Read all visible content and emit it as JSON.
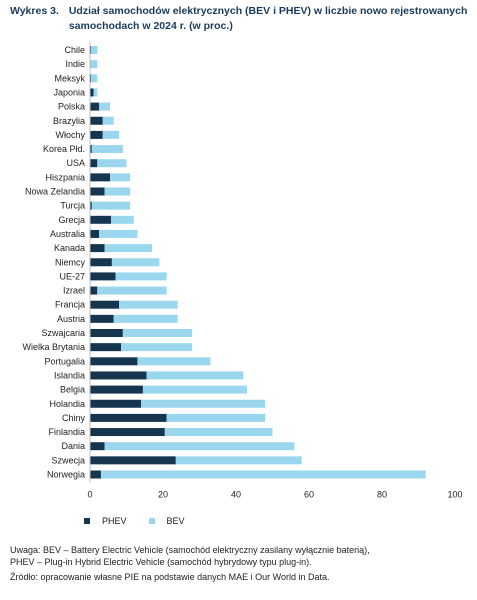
{
  "header": {
    "label": "Wykres 3.",
    "title": "Udział samochodów elektrycznych (BEV i PHEV) w liczbie nowo rejestrowanych samochodach w 2024 r. (w proc.)"
  },
  "colors": {
    "phev": "#16354f",
    "bev": "#9ad7ef",
    "axis": "#bfbfbf"
  },
  "chart_data": {
    "type": "bar",
    "orientation": "horizontal",
    "stacked": true,
    "categories": [
      "Chile",
      "Indie",
      "Meksyk",
      "Japonia",
      "Polska",
      "Brazylia",
      "Włochy",
      "Korea Płd.",
      "USA",
      "Hiszpania",
      "Nowa Zelandia",
      "Turcja",
      "Grecja",
      "Australia",
      "Kanada",
      "Niemcy",
      "UE-27",
      "Izrael",
      "Francja",
      "Austria",
      "Szwajcaria",
      "Wielka Brytania",
      "Portugalia",
      "Islandia",
      "Belgia",
      "Holandia",
      "Chiny",
      "Finlandia",
      "Dania",
      "Szwecja",
      "Norwegia"
    ],
    "series": [
      {
        "name": "PHEV",
        "values": [
          0.3,
          0.2,
          0.3,
          1.0,
          2.5,
          3.5,
          3.5,
          0.5,
          2.0,
          5.5,
          4.0,
          0.5,
          5.8,
          2.5,
          4.0,
          6.0,
          7.0,
          2.0,
          8.0,
          6.5,
          9.0,
          8.5,
          13.0,
          15.5,
          14.5,
          14.0,
          21.0,
          20.5,
          4.0,
          23.5,
          3.0
        ]
      },
      {
        "name": "BEV",
        "values": [
          1.7,
          1.8,
          1.7,
          1.0,
          3.0,
          3.0,
          4.5,
          8.5,
          8.0,
          5.5,
          7.0,
          10.5,
          6.2,
          10.5,
          13.0,
          13.0,
          14.0,
          19.0,
          16.0,
          17.5,
          19.0,
          19.5,
          20.0,
          26.5,
          28.5,
          34.0,
          27.0,
          29.5,
          52.0,
          34.5,
          89.0
        ]
      }
    ],
    "xlim": [
      0,
      100
    ],
    "xticks": [
      "0",
      "20",
      "40",
      "60",
      "80",
      "100"
    ],
    "grid": false,
    "legend_position": "bottom-left"
  },
  "legend": {
    "phev": "PHEV",
    "bev": "BEV"
  },
  "notes": {
    "line1": "Uwaga: BEV – Battery Electric Vehicle (samochód elektryczny zasilany wyłącznie baterią),",
    "line2": "PHEV – Plug-in Hybrid Electric Vehicle (samochód hybrydowy typu plug-in).",
    "source": "Źródło: opracowanie własne PIE na podstawie danych MAE i Our World in Data."
  }
}
